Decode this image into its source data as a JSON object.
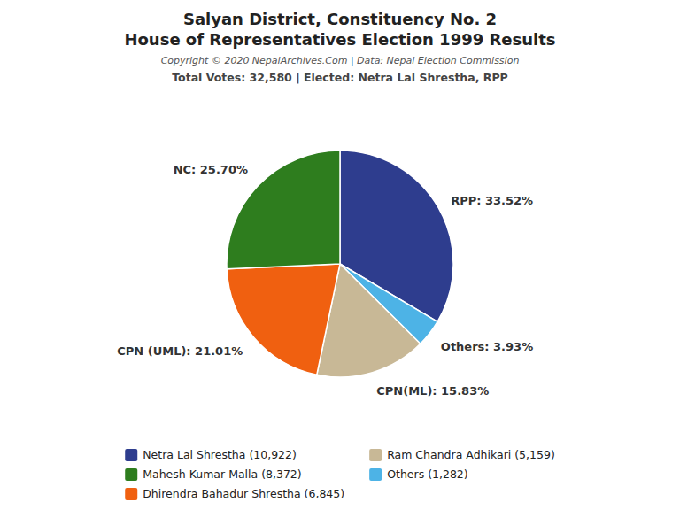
{
  "chart_data": {
    "type": "pie",
    "title": [
      "Salyan District, Constituency No. 2",
      "House of Representatives Election 1999 Results"
    ],
    "annotations": [
      "Copyright © 2020 NepalArchives.Com | Data: Nepal Election Commission"
    ],
    "subtitle": "Total Votes: 32,580 | Elected: Netra Lal Shrestha, RPP",
    "values": [
      33.52,
      3.93,
      15.83,
      21.01,
      25.7
    ],
    "value_labels": [
      "RPP: 33.52%",
      "Others: 3.93%",
      "CPN(ML): 15.83%",
      "CPN (UML): 21.01%",
      "NC: 25.70%"
    ],
    "colors": [
      "#2e3d8e",
      "#4db3e6",
      "#c8b896",
      "#f06010",
      "#2e7d1e"
    ],
    "data_labels": true,
    "legend": "bottom",
    "legend_entries": [
      {
        "label": "Netra Lal Shrestha (10,922)",
        "color": "#2e3d8e"
      },
      {
        "label": "Mahesh Kumar Malla (8,372)",
        "color": "#2e7d1e"
      },
      {
        "label": "Dhirendra Bahadur Shrestha (6,845)",
        "color": "#f06010"
      },
      {
        "label": "Ram Chandra Adhikari (5,159)",
        "color": "#c8b896"
      },
      {
        "label": "Others (1,282)",
        "color": "#4db3e6"
      }
    ]
  }
}
